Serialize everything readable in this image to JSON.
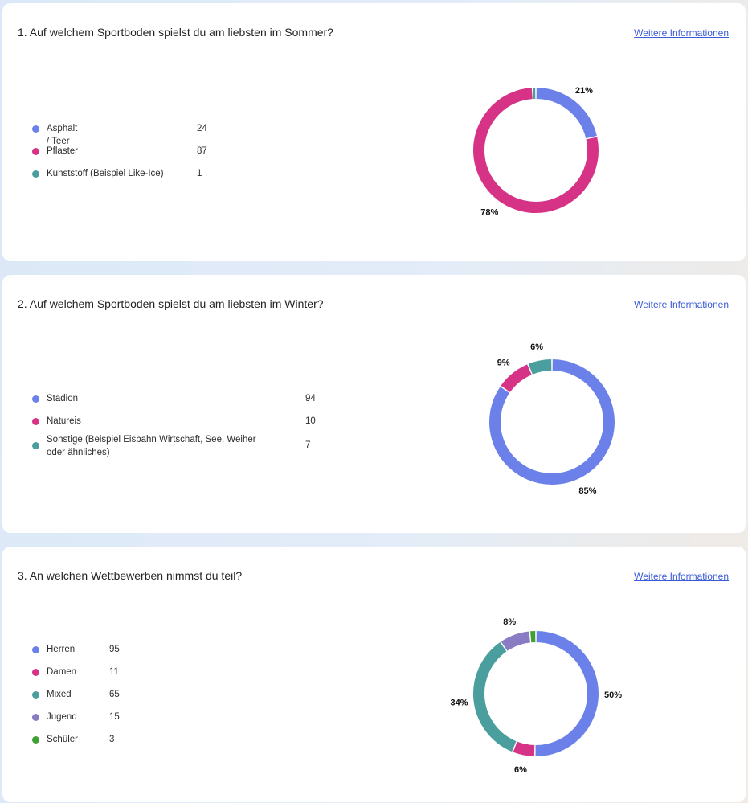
{
  "link_label": "Weitere Informationen",
  "colors": {
    "blue": "#6b80e8",
    "pink": "#d63387",
    "teal": "#4a9e9e",
    "purple": "#8a7cc2",
    "green": "#3fa133"
  },
  "questions": [
    {
      "title": "1. Auf welchem Sportboden spielst du am liebsten im Sommer?",
      "items": [
        {
          "label": "Asphalt / Teer",
          "count": "24",
          "color": "#6b80e8",
          "icon": "dot"
        },
        {
          "label": "Pflaster",
          "count": "87",
          "color": "#d63387",
          "icon": "dot"
        },
        {
          "label": "Kunststoff (Beispiel Like-Ice)",
          "count": "1",
          "color": "#4a9e9e",
          "icon": "dot"
        }
      ]
    },
    {
      "title": "2. Auf welchem Sportboden spielst du am liebsten im Winter?",
      "items": [
        {
          "label": "Stadion",
          "count": "94",
          "color": "#6b80e8",
          "icon": "dot"
        },
        {
          "label": "Natureis",
          "count": "10",
          "color": "#d63387",
          "icon": "dot"
        },
        {
          "label": "Sonstige (Beispiel Eisbahn Wirtschaft, See, Weiher oder ähnliches)",
          "count": "7",
          "color": "#4a9e9e",
          "icon": "dot"
        }
      ]
    },
    {
      "title": "3. An welchen Wettbewerben nimmst du teil?",
      "items": [
        {
          "label": "Herren",
          "count": "95",
          "color": "#6b80e8",
          "icon": "dot"
        },
        {
          "label": "Damen",
          "count": "11",
          "color": "#d63387",
          "icon": "dot"
        },
        {
          "label": "Mixed",
          "count": "65",
          "color": "#4a9e9e",
          "icon": "dot"
        },
        {
          "label": "Jugend",
          "count": "15",
          "color": "#8a7cc2",
          "icon": "dot"
        },
        {
          "label": "Schüler",
          "count": "3",
          "color": "#3fa133",
          "icon": "dot"
        }
      ]
    }
  ],
  "chart_data": [
    {
      "type": "pie",
      "style": "donut",
      "categories": [
        "Asphalt / Teer",
        "Pflaster",
        "Kunststoff (Beispiel Like-Ice)"
      ],
      "values": [
        24,
        87,
        1
      ],
      "labels": [
        "21%",
        "78%",
        ""
      ],
      "colors": [
        "#6b80e8",
        "#d63387",
        "#4a9e9e"
      ]
    },
    {
      "type": "pie",
      "style": "donut",
      "categories": [
        "Stadion",
        "Natureis",
        "Sonstige (Beispiel Eisbahn Wirtschaft, See, Weiher oder ähnliches)"
      ],
      "values": [
        94,
        10,
        7
      ],
      "labels": [
        "85%",
        "9%",
        "6%"
      ],
      "colors": [
        "#6b80e8",
        "#d63387",
        "#4a9e9e"
      ]
    },
    {
      "type": "pie",
      "style": "donut",
      "categories": [
        "Herren",
        "Damen",
        "Mixed",
        "Jugend",
        "Schüler"
      ],
      "values": [
        95,
        11,
        65,
        15,
        3
      ],
      "labels": [
        "50%",
        "6%",
        "34%",
        "8%",
        ""
      ],
      "colors": [
        "#6b80e8",
        "#d63387",
        "#4a9e9e",
        "#8a7cc2",
        "#3fa133"
      ]
    }
  ]
}
